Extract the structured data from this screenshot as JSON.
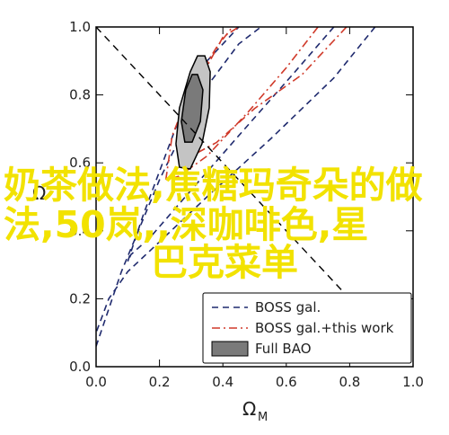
{
  "chart_data": {
    "type": "contour",
    "xlabel": "Ω",
    "xlabel_sub": "M",
    "ylabel": "Ω",
    "xlim": [
      0,
      1
    ],
    "ylim": [
      0,
      1
    ],
    "xticks": [
      {
        "value": 0,
        "label": "0.0"
      },
      {
        "value": 0.2,
        "label": "0.2"
      },
      {
        "value": 0.4,
        "label": "0.4"
      },
      {
        "value": 0.6,
        "label": "0.6"
      },
      {
        "value": 0.8,
        "label": "0.8"
      },
      {
        "value": 1,
        "label": "1.0"
      }
    ],
    "yticks": [
      {
        "value": 0,
        "label": "0.0"
      },
      {
        "value": 0.2,
        "label": "0.2"
      },
      {
        "value": 0.4,
        "label": "0.4"
      },
      {
        "value": 0.6,
        "label": "0.6"
      },
      {
        "value": 0.8,
        "label": "0.8"
      },
      {
        "value": 1,
        "label": "1.0"
      }
    ],
    "reference_line": {
      "color": "#000000",
      "x": [
        0,
        1
      ],
      "y": [
        1,
        0
      ]
    },
    "series": [
      {
        "name": "BOSS gal.",
        "color": "#1f2a6e",
        "style": "dash",
        "contours": [
          {
            "x": [
              0.0,
              0.08,
              0.2,
              0.33,
              0.45,
              0.52,
              null,
              0.88,
              0.75,
              0.55,
              0.35,
              0.18,
              0.1,
              0.04,
              0.0
            ],
            "y": [
              0.06,
              0.28,
              0.55,
              0.8,
              0.95,
              1.0,
              null,
              1.0,
              0.85,
              0.67,
              0.5,
              0.35,
              0.28,
              0.2,
              0.1
            ]
          },
          {
            "x": [
              0.1,
              0.15,
              0.25,
              0.35,
              0.45,
              null,
              0.75,
              0.62,
              0.45,
              0.3,
              0.17,
              0.11,
              0.1
            ],
            "y": [
              0.31,
              0.45,
              0.7,
              0.9,
              1.0,
              null,
              1.0,
              0.86,
              0.68,
              0.52,
              0.38,
              0.33,
              0.31
            ]
          }
        ]
      },
      {
        "name": "BOSS gal.+this work",
        "color": "#d03a2a",
        "style": "dashdot",
        "contours": [
          {
            "x": [
              0.22,
              0.24,
              0.3,
              0.38,
              0.43,
              null,
              0.7,
              0.6,
              0.48,
              0.35,
              0.26,
              0.22
            ],
            "y": [
              0.55,
              0.68,
              0.82,
              0.94,
              1.0,
              null,
              1.0,
              0.88,
              0.75,
              0.62,
              0.56,
              0.55
            ]
          },
          {
            "x": [
              0.27,
              0.28,
              0.33,
              0.4,
              0.45,
              null,
              0.79,
              0.65,
              0.5,
              0.38,
              0.3,
              0.27
            ],
            "y": [
              0.62,
              0.72,
              0.85,
              0.97,
              1.0,
              null,
              1.0,
              0.86,
              0.76,
              0.66,
              0.62,
              0.62
            ]
          }
        ]
      },
      {
        "name": "Full BAO",
        "color": "#888888",
        "style": "filled",
        "contours": [
          {
            "x": [
              0.343,
              0.36,
              0.357,
              0.334,
              0.297,
              0.263,
              0.252,
              0.263,
              0.297,
              0.32
            ],
            "y": [
              0.915,
              0.868,
              0.762,
              0.656,
              0.582,
              0.587,
              0.656,
              0.762,
              0.868,
              0.915
            ]
          },
          {
            "x": [
              0.32,
              0.337,
              0.329,
              0.303,
              0.28,
              0.269,
              0.283,
              0.303
            ],
            "y": [
              0.86,
              0.815,
              0.722,
              0.661,
              0.661,
              0.722,
              0.815,
              0.86
            ]
          }
        ]
      }
    ]
  },
  "overlay": {
    "lines": [
      "奶茶做法,焦糖玛奇朵的做",
      "法,50岚,,深咖啡色,星",
      "巴克菜单"
    ]
  }
}
